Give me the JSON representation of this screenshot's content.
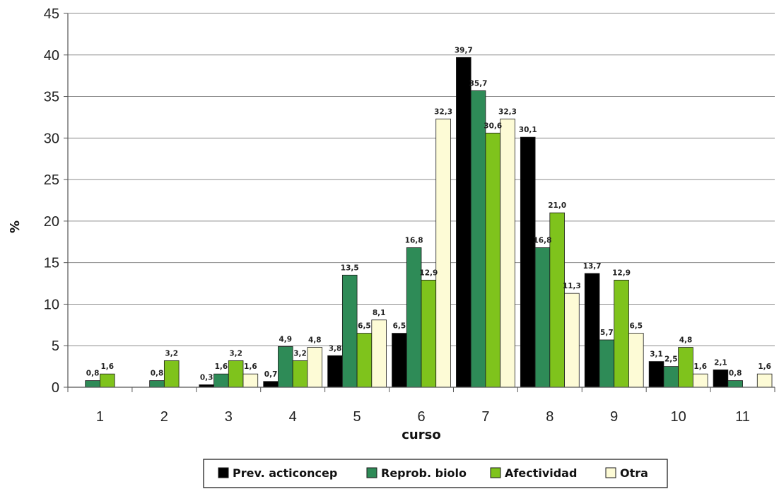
{
  "chart_data": {
    "type": "bar",
    "title": "",
    "xlabel": "curso",
    "ylabel": "%",
    "ylim": [
      0,
      45
    ],
    "yticks": [
      "0",
      "5",
      "10",
      "15",
      "20",
      "25",
      "30",
      "35",
      "40",
      "45"
    ],
    "grid": "horizontal",
    "legend_position": "bottom",
    "categories": [
      "1",
      "2",
      "3",
      "4",
      "5",
      "6",
      "7",
      "8",
      "9",
      "10",
      "11"
    ],
    "series": [
      {
        "name": "Prev. acticoncep",
        "color": "#000000",
        "values": [
          null,
          null,
          0.3,
          0.7,
          3.8,
          6.5,
          39.7,
          30.1,
          13.7,
          3.1,
          2.1
        ],
        "labels": [
          "",
          "",
          "0,3",
          "0,7",
          "3,8",
          "6,5",
          "39,7",
          "30,1",
          "13,7",
          "3,1",
          "2,1"
        ]
      },
      {
        "name": "Reprob. biolo",
        "color": "#2e8b57",
        "values": [
          0.8,
          0.8,
          1.6,
          4.9,
          13.5,
          16.8,
          35.7,
          16.8,
          5.7,
          2.5,
          0.8
        ],
        "labels": [
          "0,8",
          "0,8",
          "1,6",
          "4,9",
          "13,5",
          "16,8",
          "35,7",
          "16,8",
          "5,7",
          "2,5",
          "0,8"
        ]
      },
      {
        "name": "Afectividad",
        "color": "#7fc31c",
        "values": [
          1.6,
          3.2,
          3.2,
          3.2,
          6.5,
          12.9,
          30.6,
          21.0,
          12.9,
          4.8,
          null
        ],
        "labels": [
          "1,6",
          "3,2",
          "3,2",
          "3,2",
          "6,5",
          "12,9",
          "30,6",
          "21,0",
          "12,9",
          "4,8",
          ""
        ]
      },
      {
        "name": "Otra",
        "color": "#fdfbd6",
        "values": [
          null,
          null,
          1.6,
          4.8,
          8.1,
          32.3,
          32.3,
          11.3,
          6.5,
          1.6,
          1.6
        ],
        "labels": [
          "",
          "",
          "1,6",
          "4,8",
          "8,1",
          "32,3",
          "32,3",
          "11,3",
          "6,5",
          "1,6",
          "1,6"
        ]
      }
    ]
  }
}
